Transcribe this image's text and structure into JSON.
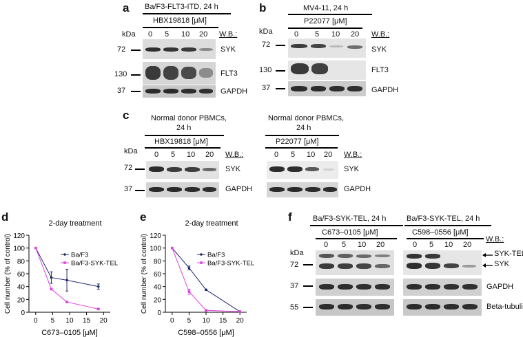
{
  "panels": {
    "a": {
      "label": "a",
      "title": "Ba/F3-FLT3-ITD, 24 h",
      "drug": "HBX19818 [μM]",
      "doses": [
        "0",
        "5",
        "10",
        "20"
      ],
      "kda_header": "kDa",
      "wb_header": "W.B.:",
      "rows": [
        {
          "kda": "72",
          "name": "SYK"
        },
        {
          "kda": "130",
          "name": "FLT3"
        },
        {
          "kda": "37",
          "name": "GAPDH"
        }
      ]
    },
    "b": {
      "label": "b",
      "title": "MV4-11, 24 h",
      "drug": "P22077 [μM]",
      "doses": [
        "0",
        "5",
        "10",
        "20"
      ],
      "kda_header": "kDa",
      "wb_header": "W.B.:",
      "rows": [
        {
          "kda": "72",
          "name": "SYK"
        },
        {
          "kda": "130",
          "name": "FLT3"
        },
        {
          "kda": "37",
          "name": "GAPDH"
        }
      ]
    },
    "c": {
      "label": "c",
      "kda_header": "kDa",
      "kda_rows": [
        "72",
        "37"
      ],
      "left": {
        "title_line1": "Normal donor PBMCs,",
        "title_line2": "24 h",
        "drug": "HBX19818 [μM]",
        "doses": [
          "0",
          "5",
          "10",
          "20"
        ],
        "wb_header": "W.B.:",
        "rows": [
          "SYK",
          "GAPDH"
        ]
      },
      "right": {
        "title_line1": "Normal donor PBMCs,",
        "title_line2": "24 h",
        "drug": "P22077 [μM]",
        "doses": [
          "0",
          "5",
          "10",
          "20"
        ],
        "wb_header": "W.B.:",
        "rows": [
          "SYK",
          "GAPDH"
        ]
      }
    },
    "d": {
      "label": "d",
      "title": "2-day treatment",
      "xlabel": "C673–0105 [μM]",
      "ylabel": "Cell number (% of control)"
    },
    "e": {
      "label": "e",
      "title": "2-day treatment",
      "xlabel": "C598–0556 [μM]",
      "ylabel": "Cell number (% of control)"
    },
    "f": {
      "label": "f",
      "kda_header": "kDa",
      "kda_rows": [
        "72",
        "37",
        "55"
      ],
      "wb_header": "W.B.:",
      "left": {
        "title": "Ba/F3-SYK-TEL, 24 h",
        "drug": "C673–0105 [μM]",
        "doses": [
          "0",
          "5",
          "10",
          "20"
        ]
      },
      "right": {
        "title": "Ba/F3-SYK-TEL, 24 h",
        "drug": "C598–0556 [μM]",
        "doses": [
          "0",
          "5",
          "10",
          "20"
        ]
      },
      "rows": [
        "SYK-TEL",
        "SYK",
        "GAPDH",
        "Beta-tubulin"
      ]
    }
  },
  "colors": {
    "ba_f3": "#1f2a6b",
    "ba_f3_syk_tel": "#e040e0"
  },
  "chart_data": [
    {
      "type": "line",
      "title": "2-day treatment",
      "xlabel": "C673–0105 [μM]",
      "ylabel": "Cell number (% of control)",
      "xlim": [
        -2,
        22
      ],
      "ylim": [
        0,
        120
      ],
      "xticks": [
        0,
        5,
        10,
        15,
        20
      ],
      "yticks": [
        0,
        20,
        40,
        60,
        80,
        100,
        120
      ],
      "legend_position": "top-right",
      "series": [
        {
          "name": "Ba/F3",
          "x": [
            0,
            4.6,
            9.2,
            18.5
          ],
          "y": [
            100,
            54,
            50,
            40
          ],
          "err": [
            0,
            9,
            17,
            4
          ],
          "color": "#1f2a6b"
        },
        {
          "name": "Ba/F3-SYK-TEL",
          "x": [
            0,
            4.6,
            9.2,
            18.5
          ],
          "y": [
            100,
            36,
            16,
            5
          ],
          "err": [
            0,
            1,
            1,
            1
          ],
          "color": "#e040e0"
        }
      ]
    },
    {
      "type": "line",
      "title": "2-day treatment",
      "xlabel": "C598–0556 [μM]",
      "ylabel": "Cell number (% of control)",
      "xlim": [
        -2,
        22
      ],
      "ylim": [
        0,
        120
      ],
      "xticks": [
        0,
        5,
        10,
        15,
        20
      ],
      "yticks": [
        0,
        20,
        40,
        60,
        80,
        100,
        120
      ],
      "legend_position": "top-right",
      "series": [
        {
          "name": "Ba/F3",
          "x": [
            0,
            5,
            10,
            20
          ],
          "y": [
            100,
            69,
            35,
            1
          ],
          "err": [
            0,
            3,
            1,
            0
          ],
          "color": "#1f2a6b"
        },
        {
          "name": "Ba/F3-SYK-TEL",
          "x": [
            0,
            5,
            10,
            20
          ],
          "y": [
            100,
            32,
            3,
            1
          ],
          "err": [
            0,
            4,
            1,
            0
          ],
          "color": "#e040e0"
        }
      ]
    }
  ]
}
